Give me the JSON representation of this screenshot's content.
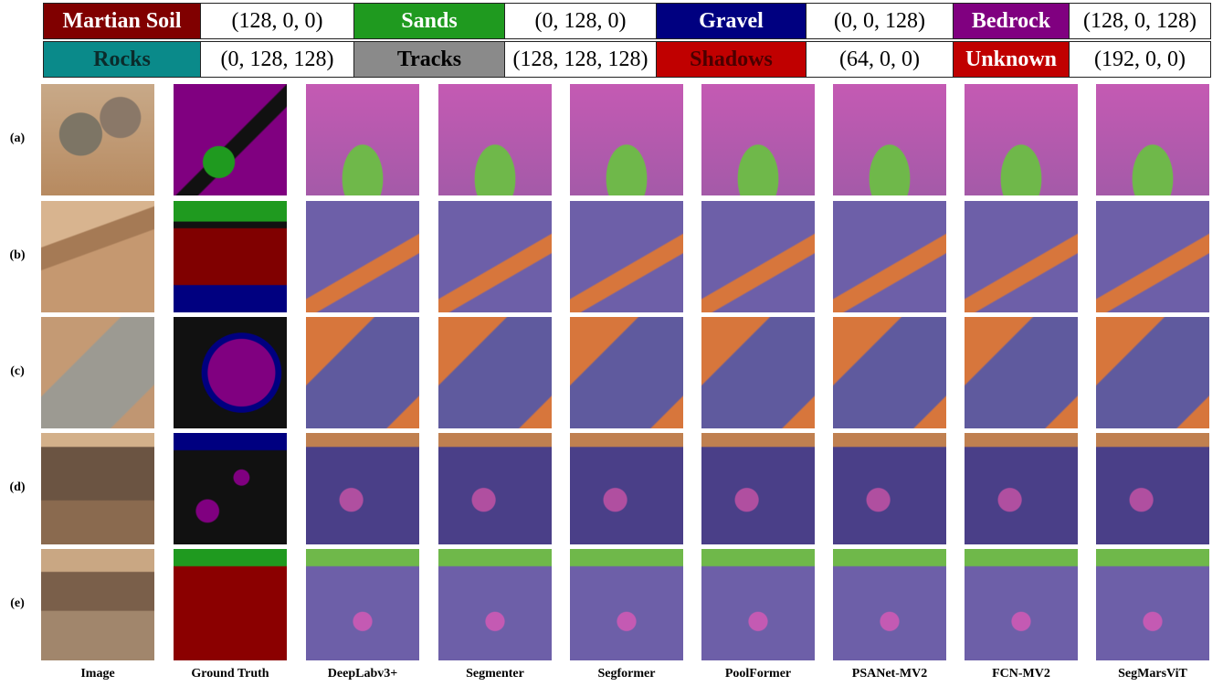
{
  "legend": [
    {
      "name": "Martian Soil",
      "rgb": "(128, 0, 0)",
      "color": "#800000",
      "text_color": "#ffffff"
    },
    {
      "name": "Sands",
      "rgb": "(0, 128, 0)",
      "color": "#1f9a1f",
      "text_color": "#ffffff"
    },
    {
      "name": "Gravel",
      "rgb": "(0, 0, 128)",
      "color": "#000080",
      "text_color": "#ffffff"
    },
    {
      "name": "Bedrock",
      "rgb": "(128, 0, 128)",
      "color": "#800080",
      "text_color": "#ffffff"
    },
    {
      "name": "Rocks",
      "rgb": "(0, 128, 128)",
      "color": "#0a8a8a",
      "text_color": "#0b2b2b"
    },
    {
      "name": "Tracks",
      "rgb": "(128, 128, 128)",
      "color": "#8a8a8a",
      "text_color": "#000000"
    },
    {
      "name": "Shadows",
      "rgb": "(64, 0, 0)",
      "color": "#c00000",
      "text_color": "#4a0000"
    },
    {
      "name": "Unknown",
      "rgb": "(192, 0, 0)",
      "color": "#c00000",
      "text_color": "#ffffff"
    }
  ],
  "rows": [
    "(a)",
    "(b)",
    "(c)",
    "(d)",
    "(e)"
  ],
  "columns": [
    "Image",
    "Ground Truth",
    "DeepLabv3+",
    "Segmenter",
    "Segformer",
    "PoolFormer",
    "PSANet-MV2",
    "FCN-MV2",
    "SegMarsViT"
  ]
}
